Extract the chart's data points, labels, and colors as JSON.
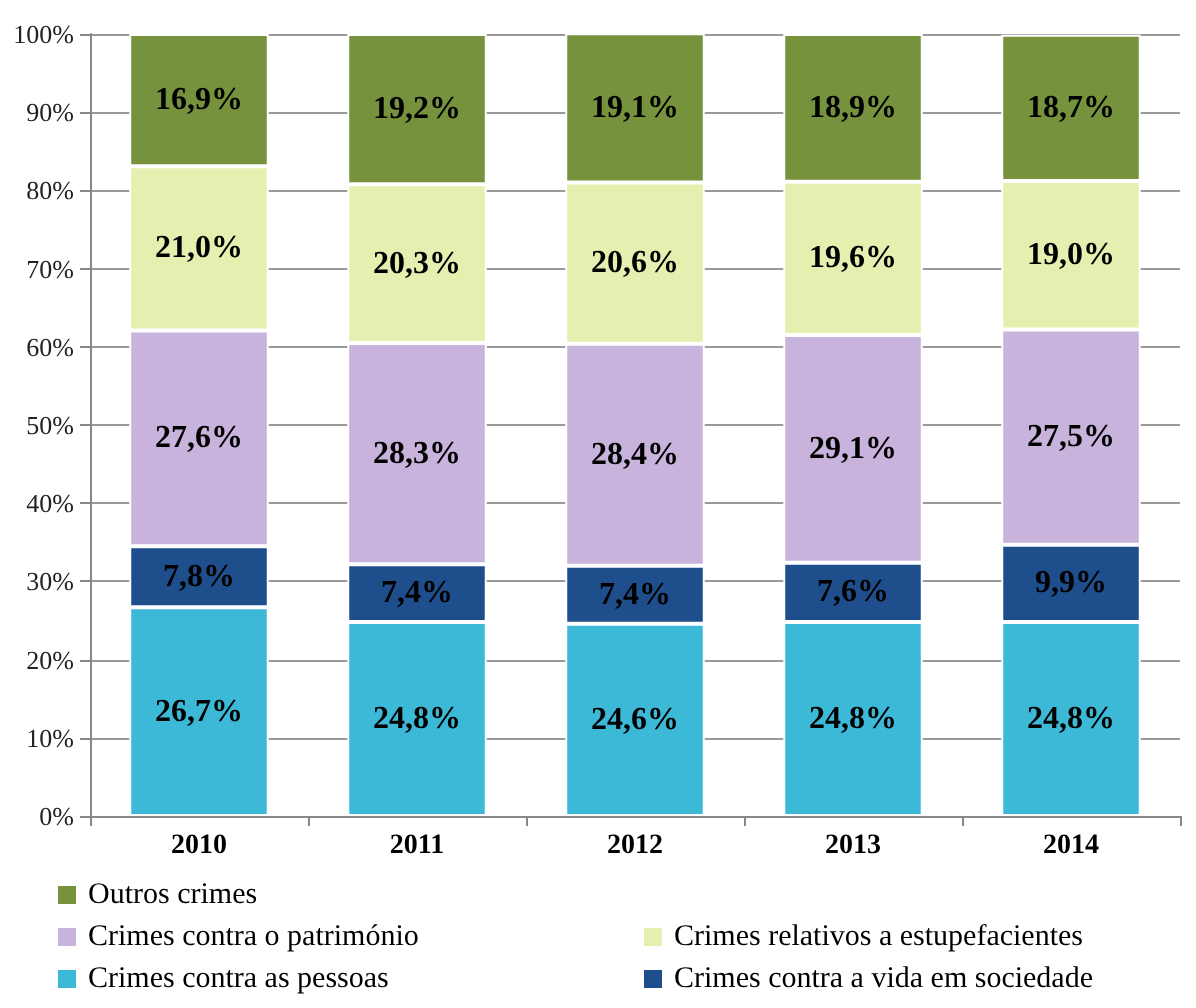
{
  "chart_data": {
    "type": "bar",
    "stacked": true,
    "categories": [
      "2010",
      "2011",
      "2012",
      "2013",
      "2014"
    ],
    "series": [
      {
        "name": "Crimes contra as pessoas",
        "color": "#3cb9d6",
        "values": [
          26.7,
          24.8,
          24.6,
          24.8,
          24.8
        ],
        "value_labels": [
          "26,7%",
          "24,8%",
          "24,6%",
          "24,8%",
          "24,8%"
        ]
      },
      {
        "name": "Crimes contra a vida em sociedade",
        "color": "#1f4e8c",
        "values": [
          7.8,
          7.4,
          7.4,
          7.6,
          9.9
        ],
        "value_labels": [
          "7,8%",
          "7,4%",
          "7,4%",
          "7,6%",
          "9,9%"
        ]
      },
      {
        "name": "Crimes contra o património",
        "color": "#c7b3dc",
        "values": [
          27.6,
          28.3,
          28.4,
          29.1,
          27.5
        ],
        "value_labels": [
          "27,6%",
          "28,3%",
          "28,4%",
          "29,1%",
          "27,5%"
        ]
      },
      {
        "name": "Crimes relativos a estupefacientes",
        "color": "#e4efb0",
        "values": [
          21.0,
          20.3,
          20.6,
          19.6,
          19.0
        ],
        "value_labels": [
          "21,0%",
          "20,3%",
          "20,6%",
          "19,6%",
          "19,0%"
        ]
      },
      {
        "name": "Outros crimes",
        "color": "#76923c",
        "values": [
          16.9,
          19.2,
          19.1,
          18.9,
          18.7
        ],
        "value_labels": [
          "16,9%",
          "19,2%",
          "19,1%",
          "18,9%",
          "18,7%"
        ]
      }
    ],
    "ylim": [
      0,
      100
    ],
    "yticks": [
      {
        "value": 0,
        "label": "0%"
      },
      {
        "value": 10,
        "label": "10%"
      },
      {
        "value": 20,
        "label": "20%"
      },
      {
        "value": 30,
        "label": "30%"
      },
      {
        "value": 40,
        "label": "40%"
      },
      {
        "value": 50,
        "label": "50%"
      },
      {
        "value": 60,
        "label": "60%"
      },
      {
        "value": 70,
        "label": "70%"
      },
      {
        "value": 80,
        "label": "80%"
      },
      {
        "value": 90,
        "label": "90%"
      },
      {
        "value": 100,
        "label": "100%"
      }
    ],
    "grid": "y",
    "legend": "bottom"
  }
}
